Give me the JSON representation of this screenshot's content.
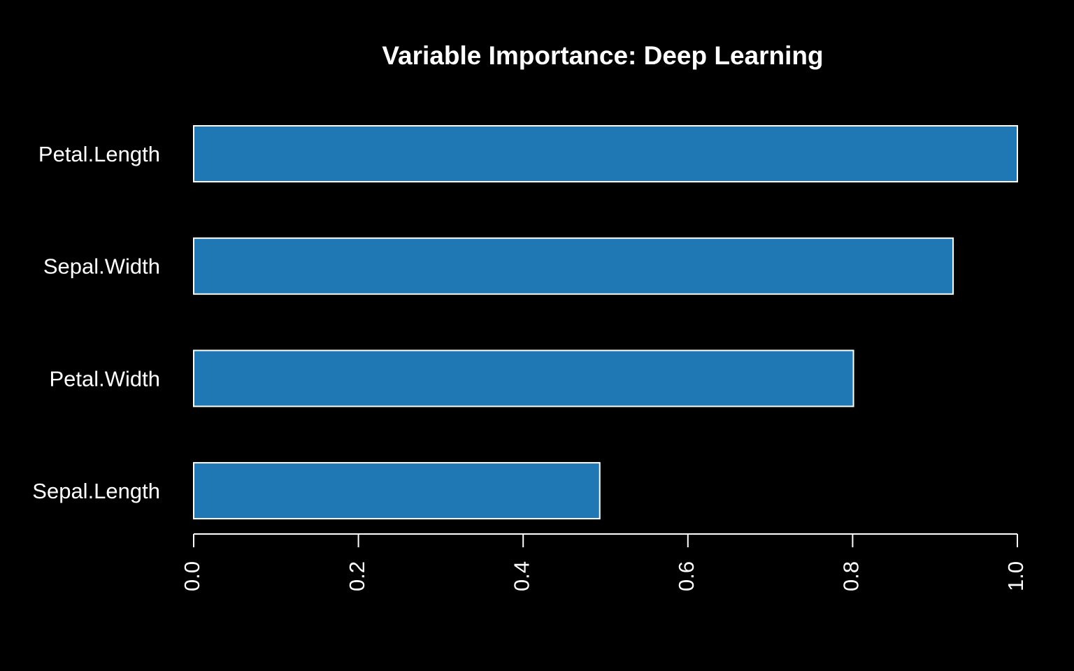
{
  "chart_data": {
    "type": "bar",
    "orientation": "horizontal",
    "title": "Variable Importance: Deep Learning",
    "xlabel": "",
    "ylabel": "",
    "categories": [
      "Petal.Length",
      "Sepal.Width",
      "Petal.Width",
      "Sepal.Length"
    ],
    "values": [
      1.0,
      0.922,
      0.801,
      0.493
    ],
    "xlim": [
      0,
      1.0
    ],
    "ticks": [
      "0.0",
      "0.2",
      "0.4",
      "0.6",
      "0.8",
      "1.0"
    ],
    "tick_values": [
      0.0,
      0.2,
      0.4,
      0.6,
      0.8,
      1.0
    ],
    "grid": false,
    "legend": "none",
    "colors": {
      "background": "#000000",
      "bar_fill": "#1f77b4",
      "bar_stroke": "#ffffff",
      "axis": "#ffffff",
      "text": "#ffffff"
    }
  }
}
